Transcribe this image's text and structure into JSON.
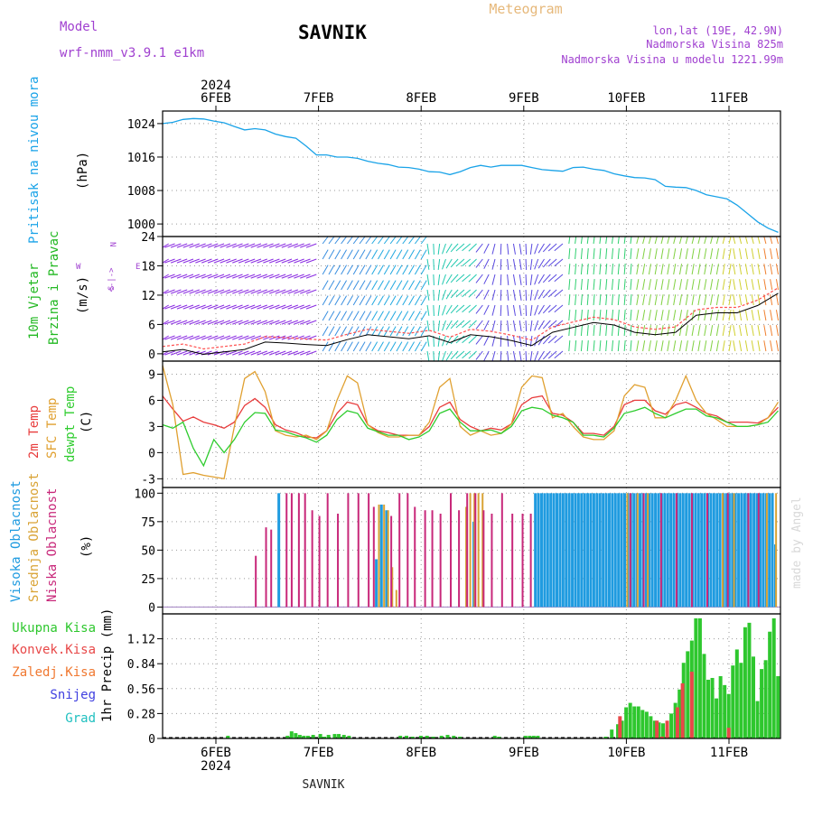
{
  "header": {
    "model_label": "Model",
    "model_name": "wrf-nmm_v3.9.1 e1km",
    "station": "SAVNIK",
    "title": "Meteogram",
    "lonlat": "lon,lat (19E, 42.9N)",
    "elevation": "Nadmorska Visina 825m",
    "model_elevation": "Nadmorska Visina u modelu 1221.99m"
  },
  "footer": {
    "station": "SAVNIK",
    "watermark": "made by Angel"
  },
  "axis": {
    "year": "2024",
    "days": [
      "6FEB",
      "7FEB",
      "8FEB",
      "9FEB",
      "10FEB",
      "11FEB"
    ]
  },
  "colors": {
    "pressure": "#1aa3e8",
    "wind_label": "#22b822",
    "wind_unit": "#000000",
    "temp2m": "#e83c3c",
    "sfc": "#e0a030",
    "dewpt": "#2ecc2e",
    "high_cloud": "#1f9be0",
    "mid_cloud": "#d9a335",
    "low_cloud": "#c8287a",
    "precip_total": "#2ec72e",
    "precip_conv": "#e84848",
    "precip_frz": "#f07830",
    "snow": "#4040e0",
    "grad": "#20c0c0",
    "purple": "#a040d0"
  },
  "chart_data": [
    {
      "type": "line",
      "panel": "pressure",
      "ylabel": "Pritisak na nivou mora",
      "unit": "(hPa)",
      "yticks": [
        1000,
        1008,
        1016,
        1024
      ],
      "ylim": [
        997,
        1027
      ],
      "x": [
        0,
        0.1,
        0.2,
        0.3,
        0.4,
        0.5,
        0.6,
        0.7,
        0.8,
        0.9,
        1.0,
        1.1,
        1.2,
        1.3,
        1.4,
        1.5,
        1.6,
        1.7,
        1.8,
        1.9,
        2.0,
        2.1,
        2.2,
        2.3,
        2.4,
        2.5,
        2.6,
        2.7,
        2.8,
        2.9,
        3.0,
        3.1,
        3.2,
        3.3,
        3.4,
        3.5,
        3.6,
        3.7,
        3.8,
        3.9,
        4.0,
        4.1,
        4.2,
        4.3,
        4.4,
        4.5,
        4.6,
        4.7,
        4.8,
        4.9,
        5.0,
        5.1,
        5.2,
        5.3,
        5.4,
        5.5,
        5.6,
        5.7,
        5.8,
        5.9,
        6.0
      ],
      "series": [
        {
          "values": [
            1024,
            1024.3,
            1025,
            1025.2,
            1025.1,
            1024.6,
            1024.2,
            1023.3,
            1022.5,
            1022.8,
            1022.5,
            1021.5,
            1020.9,
            1020.5,
            1018.6,
            1016.5,
            1016.5,
            1016,
            1016,
            1015.7,
            1015,
            1014.5,
            1014.2,
            1013.6,
            1013.5,
            1013.1,
            1012.5,
            1012.4,
            1011.8,
            1012.5,
            1013.5,
            1014,
            1013.6,
            1014,
            1014,
            1014,
            1013.5,
            1013,
            1012.8,
            1012.6,
            1013.5,
            1013.6,
            1013.1,
            1012.8,
            1012,
            1011.5,
            1011.1,
            1011,
            1010.6,
            1009,
            1008.8,
            1008.7,
            1008,
            1007,
            1006.5,
            1006,
            1004.5,
            1002.5,
            1000.5,
            999,
            998
          ]
        }
      ]
    },
    {
      "type": "line",
      "panel": "wind",
      "ylabel": [
        "10m Vjetar",
        "Brzina i Pravac"
      ],
      "unit": "(m/s)",
      "compass": {
        "n": "N",
        "s": "S",
        "w": "W",
        "e": "E",
        "dirs": "<-|->"
      },
      "yticks": [
        0,
        6,
        12,
        18,
        24
      ],
      "ylim": [
        -1.5,
        24
      ],
      "x": [
        0,
        0.2,
        0.4,
        0.6,
        0.8,
        1.0,
        1.2,
        1.4,
        1.6,
        1.8,
        2.0,
        2.2,
        2.4,
        2.6,
        2.8,
        3.0,
        3.2,
        3.4,
        3.6,
        3.8,
        4.0,
        4.2,
        4.4,
        4.6,
        4.8,
        5.0,
        5.2,
        5.4,
        5.6,
        5.8,
        6.0
      ],
      "series": [
        {
          "name": "",
          "values": [
            1.5,
            2,
            1,
            1.5,
            2,
            3.5,
            3.3,
            3,
            2.8,
            4,
            5,
            4.6,
            4.2,
            4.8,
            3.4,
            5,
            4.6,
            3.8,
            2.8,
            5.5,
            6.5,
            7.5,
            7,
            5.5,
            5,
            5.5,
            9,
            9.5,
            9.5,
            11,
            13.5
          ]
        }
      ]
    },
    {
      "type": "line",
      "panel": "temperature",
      "ylabel": [
        "2m Temp",
        "SFC Temp",
        "dewpt Temp"
      ],
      "unit": "(C)",
      "yticks": [
        -3,
        0,
        3,
        6,
        9
      ],
      "ylim": [
        -4,
        10.5
      ],
      "x": [
        0,
        0.1,
        0.2,
        0.3,
        0.4,
        0.5,
        0.6,
        0.7,
        0.8,
        0.9,
        1.0,
        1.1,
        1.2,
        1.3,
        1.4,
        1.5,
        1.6,
        1.7,
        1.8,
        1.9,
        2.0,
        2.1,
        2.2,
        2.3,
        2.4,
        2.5,
        2.6,
        2.7,
        2.8,
        2.9,
        3.0,
        3.1,
        3.2,
        3.3,
        3.4,
        3.5,
        3.6,
        3.7,
        3.8,
        3.9,
        4.0,
        4.1,
        4.2,
        4.3,
        4.4,
        4.5,
        4.6,
        4.7,
        4.8,
        4.9,
        5.0,
        5.1,
        5.2,
        5.3,
        5.4,
        5.5,
        5.6,
        5.7,
        5.8,
        5.9,
        6.0
      ],
      "series": [
        {
          "name": "2m Temp",
          "values": [
            6.5,
            5,
            3.6,
            4.1,
            3.5,
            3.2,
            2.8,
            3.5,
            5.4,
            6.2,
            5.2,
            3.2,
            2.6,
            2.3,
            1.8,
            1.7,
            2.5,
            4.5,
            5.8,
            5.5,
            3.2,
            2.5,
            2.3,
            2,
            2,
            2,
            3,
            5.2,
            5.8,
            3.8,
            3,
            2.5,
            2.8,
            2.6,
            3.3,
            5.5,
            6.3,
            6.5,
            4.5,
            4.3,
            3.5,
            2.2,
            2.2,
            2,
            3,
            5.5,
            6,
            6,
            4.8,
            4.4,
            5.5,
            5.8,
            5.2,
            4.5,
            4.2,
            3.5,
            3.5,
            3.5,
            3.4,
            4,
            5.2
          ]
        },
        {
          "name": "SFC Temp",
          "values": [
            10,
            5.5,
            -2.5,
            -2.3,
            -2.6,
            -2.8,
            -3,
            3,
            8.5,
            9.3,
            7,
            2.5,
            2,
            1.8,
            2,
            1.5,
            2.5,
            6,
            8.8,
            8,
            3.2,
            2.3,
            1.8,
            1.8,
            2,
            2,
            3.5,
            7.5,
            8.5,
            3,
            2,
            2.5,
            2,
            2.2,
            3.3,
            7.5,
            8.8,
            8.6,
            4,
            4.5,
            3,
            1.8,
            1.5,
            1.5,
            2.5,
            6.5,
            7.8,
            7.5,
            4,
            4,
            6,
            8.8,
            6,
            4.5,
            3.8,
            3,
            3,
            3,
            3.2,
            4,
            5.8
          ]
        },
        {
          "name": "dewpt Temp",
          "values": [
            3.2,
            2.8,
            3.5,
            0.5,
            -1.5,
            1.5,
            0,
            1.5,
            3.5,
            4.6,
            4.5,
            2.6,
            2.4,
            2,
            1.7,
            1.2,
            2,
            3.8,
            4.8,
            4.5,
            2.8,
            2.4,
            2,
            2,
            1.5,
            1.8,
            2.5,
            4.5,
            5,
            3.5,
            2.5,
            2.5,
            2.6,
            2.2,
            3,
            4.8,
            5.2,
            5,
            4.3,
            4,
            3.5,
            2,
            2,
            1.8,
            2.8,
            4.5,
            4.8,
            5.2,
            4.5,
            4,
            4.5,
            5,
            5,
            4.2,
            4,
            3.5,
            3,
            3,
            3.2,
            3.5,
            4.8
          ]
        }
      ]
    },
    {
      "type": "bar",
      "panel": "cloud",
      "ylabel": [
        "Visoka Oblacnost",
        "Srednja Oblacnost",
        "Niska Oblacnost"
      ],
      "unit": "(%)",
      "yticks": [
        0,
        25,
        50,
        75,
        100
      ],
      "ylim": [
        -6,
        105
      ],
      "series": [
        {
          "name": "Visoka Oblacnost",
          "x": [
            1.12,
            2.07,
            2.12,
            2.17,
            3.02,
            3.62,
            3.65,
            3.68,
            3.71,
            3.74,
            3.77,
            3.8,
            3.83,
            3.86,
            3.89,
            3.92,
            3.95,
            3.98,
            4.01,
            4.04,
            4.07,
            4.1,
            4.13,
            4.16,
            4.19,
            4.22,
            4.25,
            4.28,
            4.31,
            4.34,
            4.37,
            4.4,
            4.43,
            4.46,
            4.49,
            4.52,
            4.55,
            4.58,
            4.61,
            4.64,
            4.67,
            4.7,
            4.73,
            4.76,
            4.79,
            4.82,
            4.85,
            4.88,
            4.91,
            4.94,
            4.97,
            5.0,
            5.03,
            5.06,
            5.09,
            5.12,
            5.15,
            5.18,
            5.21,
            5.24,
            5.27,
            5.3,
            5.33,
            5.36,
            5.39,
            5.42,
            5.45,
            5.48,
            5.51,
            5.54,
            5.57,
            5.6,
            5.63,
            5.66,
            5.69,
            5.72,
            5.75,
            5.78,
            5.81,
            5.84,
            5.87,
            5.9,
            5.93,
            5.96
          ],
          "values": [
            100,
            42,
            90,
            85,
            75,
            100,
            100,
            100,
            100,
            100,
            100,
            100,
            100,
            100,
            100,
            100,
            100,
            100,
            100,
            100,
            100,
            100,
            100,
            100,
            100,
            100,
            100,
            100,
            100,
            100,
            100,
            100,
            100,
            100,
            100,
            100,
            100,
            100,
            100,
            100,
            100,
            100,
            100,
            100,
            100,
            100,
            100,
            100,
            100,
            100,
            100,
            100,
            100,
            100,
            100,
            100,
            100,
            100,
            100,
            100,
            100,
            100,
            100,
            100,
            100,
            100,
            100,
            100,
            100,
            100,
            100,
            100,
            100,
            100,
            100,
            100,
            100,
            100,
            100,
            100,
            100,
            100,
            100,
            55
          ]
        },
        {
          "name": "Srednja Oblacnost",
          "x": [
            2.1,
            2.15,
            2.19,
            2.23,
            2.27,
            2.95,
            2.99,
            3.03,
            3.07,
            3.11,
            4.52,
            4.62,
            4.72,
            5.45,
            5.56,
            5.88,
            5.97
          ],
          "values": [
            90,
            90,
            85,
            35,
            15,
            88,
            100,
            100,
            100,
            100,
            100,
            100,
            100,
            100,
            100,
            100,
            100
          ]
        },
        {
          "name": "Niska Oblacnost",
          "x": [
            0.9,
            1.0,
            1.05,
            1.2,
            1.25,
            1.32,
            1.38,
            1.45,
            1.52,
            1.6,
            1.7,
            1.8,
            1.9,
            2.0,
            2.05,
            2.22,
            2.3,
            2.38,
            2.45,
            2.55,
            2.62,
            2.7,
            2.8,
            2.88,
            2.96,
            3.04,
            3.12,
            3.2,
            3.3,
            3.4,
            3.5,
            3.58,
            4.55,
            4.68,
            4.85,
            5.0,
            5.15,
            5.3,
            5.5,
            5.7,
            5.8
          ],
          "values": [
            45,
            70,
            68,
            100,
            100,
            100,
            100,
            85,
            80,
            100,
            82,
            100,
            100,
            100,
            88,
            80,
            100,
            100,
            88,
            85,
            85,
            82,
            100,
            85,
            100,
            100,
            85,
            82,
            100,
            82,
            82,
            82,
            100,
            100,
            100,
            100,
            100,
            100,
            100,
            100,
            100
          ]
        }
      ]
    },
    {
      "type": "bar",
      "panel": "precipitation",
      "ylabel": "1hr Precip (mm)",
      "legend": [
        "Ukupna Kisa",
        "Konvek.Kisa",
        "Zaledj.Kisa",
        "Snijeg",
        "Grad"
      ],
      "yticks": [
        0,
        0.28,
        0.56,
        0.84,
        1.12
      ],
      "ylim": [
        0,
        1.4
      ],
      "series": [
        {
          "name": "Ukupna Kisa",
          "x": [
            0.62,
            1.2,
            1.24,
            1.28,
            1.32,
            1.36,
            1.4,
            1.45,
            1.52,
            1.56,
            1.6,
            1.66,
            1.7,
            1.75,
            1.8,
            2.3,
            2.36,
            2.42,
            2.5,
            2.56,
            2.62,
            2.7,
            2.76,
            2.82,
            2.88,
            3.22,
            3.26,
            3.52,
            3.56,
            3.6,
            3.64,
            4.3,
            4.36,
            4.42,
            4.46,
            4.5,
            4.54,
            4.58,
            4.62,
            4.66,
            4.7,
            4.74,
            4.78,
            4.82,
            4.86,
            4.9,
            4.94,
            4.98,
            5.02,
            5.06,
            5.1,
            5.14,
            5.18,
            5.22,
            5.26,
            5.3,
            5.34,
            5.38,
            5.42,
            5.46,
            5.5,
            5.54,
            5.58,
            5.62,
            5.66,
            5.7,
            5.74,
            5.78,
            5.82,
            5.86,
            5.9,
            5.94,
            5.98
          ],
          "values": [
            0.03,
            0.03,
            0.08,
            0.06,
            0.04,
            0.03,
            0.03,
            0.04,
            0.05,
            0.02,
            0.04,
            0.05,
            0.05,
            0.04,
            0.03,
            0.03,
            0.03,
            0.02,
            0.03,
            0.03,
            0.02,
            0.03,
            0.04,
            0.03,
            0.02,
            0.03,
            0.02,
            0.03,
            0.03,
            0.03,
            0.03,
            0.02,
            0.1,
            0.16,
            0.2,
            0.35,
            0.4,
            0.36,
            0.36,
            0.32,
            0.3,
            0.25,
            0.2,
            0.18,
            0.17,
            0.1,
            0.28,
            0.4,
            0.55,
            0.85,
            0.98,
            1.1,
            1.35,
            1.35,
            0.95,
            0.66,
            0.68,
            0.45,
            0.7,
            0.6,
            0.5,
            0.82,
            1.0,
            0.85,
            1.25,
            1.3,
            0.92,
            0.42,
            0.78,
            0.88,
            1.2,
            1.35,
            0.7
          ]
        },
        {
          "name": "Konvek.Kisa",
          "x": [
            4.44,
            4.8,
            4.85,
            4.9,
            5.0,
            5.05,
            5.14,
            5.5
          ],
          "values": [
            0.25,
            0.2,
            0.02,
            0.2,
            0.35,
            0.62,
            0.75,
            0.12
          ]
        }
      ]
    }
  ]
}
